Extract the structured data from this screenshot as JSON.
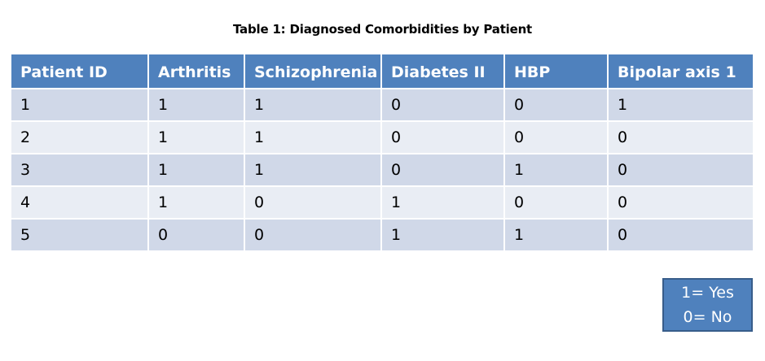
{
  "title": "Table 1: Diagnosed Comorbidities by Patient",
  "table": {
    "headers": [
      "Patient ID",
      "Arthritis",
      "Schizophrenia",
      "Diabetes II",
      "HBP",
      "Bipolar axis 1"
    ],
    "rows": [
      [
        "1",
        "1",
        "1",
        "0",
        "0",
        "1"
      ],
      [
        "2",
        "1",
        "1",
        "0",
        "0",
        "0"
      ],
      [
        "3",
        "1",
        "1",
        "0",
        "1",
        "0"
      ],
      [
        "4",
        "1",
        "0",
        "1",
        "0",
        "0"
      ],
      [
        "5",
        "0",
        "0",
        "1",
        "1",
        "0"
      ]
    ]
  },
  "legend": {
    "line1": "1= Yes",
    "line2": "0= No"
  },
  "colors": {
    "header_bg": "#4f81bd",
    "row_band_dark": "#d0d8e8",
    "row_band_light": "#e9edf4"
  }
}
